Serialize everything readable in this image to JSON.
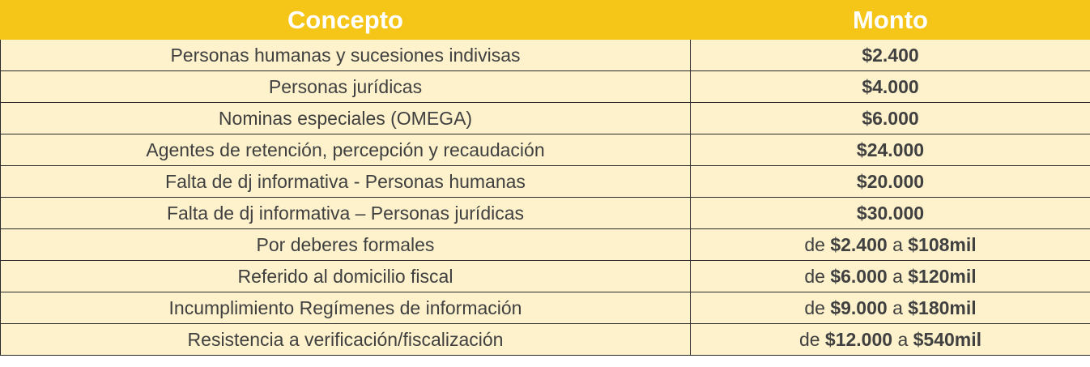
{
  "table": {
    "headers": [
      "Concepto",
      "Monto"
    ],
    "colors": {
      "header_bg": "#f5c518",
      "header_text": "#ffffff",
      "row_bg": "#fdf2cc",
      "text": "#404040"
    },
    "rows": [
      {
        "concept": "Personas humanas y sucesiones indivisas",
        "amount": "$2.400"
      },
      {
        "concept": "Personas jurídicas",
        "amount": "$4.000"
      },
      {
        "concept": "Nominas especiales (OMEGA)",
        "amount": "$6.000"
      },
      {
        "concept": "Agentes de retención, percepción y recaudación",
        "amount": "$24.000"
      },
      {
        "concept": "Falta de dj informativa - Personas humanas",
        "amount": "$20.000"
      },
      {
        "concept": "Falta de dj informativa – Personas jurídicas",
        "amount": "$30.000"
      },
      {
        "concept": "Por deberes formales",
        "prefix": "de",
        "min": "$2.400",
        "sep": "a",
        "max": "$108mil"
      },
      {
        "concept": "Referido al domicilio fiscal",
        "prefix": "de",
        "min": "$6.000",
        "sep": "a",
        "max": "$120mil"
      },
      {
        "concept": "Incumplimiento Regímenes de información",
        "prefix": "de",
        "min": "$9.000",
        "sep": "a",
        "max": "$180mil"
      },
      {
        "concept": "Resistencia a verificación/fiscalización",
        "prefix": "de",
        "min": "$12.000",
        "sep": "a",
        "max": "$540mil"
      }
    ]
  }
}
